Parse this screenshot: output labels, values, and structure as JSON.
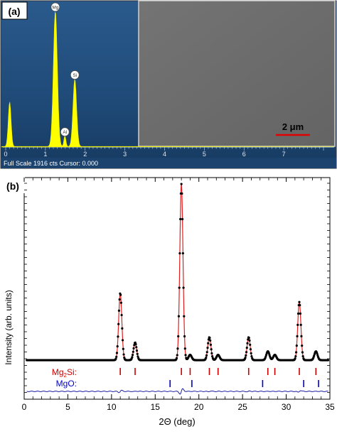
{
  "colors": {
    "eds_background": "#1e4a78",
    "eds_spectrum": "#ffff00",
    "sem_image": "#6e6e6e",
    "scale_bar": "#e00000",
    "fit_line": "#e02020",
    "observed_points": "#000000",
    "mg2si_ticks": "#cc0000",
    "mgo_ticks": "#0000cc",
    "difference_curve": "#1a1aa0"
  },
  "panel_a": {
    "label": "(a)",
    "status_text": "Full Scale 1916 cts Cursor: 0.000",
    "sem_scale_bar_label": "2 μm",
    "eds_peak_labels": [
      "Mg",
      "Si",
      "Al"
    ]
  },
  "panel_b": {
    "label": "(b)",
    "phase_labels": [
      "Mg2Si:",
      "MgO:"
    ]
  },
  "chart_data": [
    {
      "type": "area",
      "description_source": "EDS spectrum in panel (a)",
      "x_ticks": [
        0,
        1,
        2,
        3,
        4,
        5,
        6,
        7
      ],
      "xlim": [
        -0.1,
        8.4
      ],
      "peaks": [
        {
          "label": "",
          "x": 0.1,
          "height_fraction": 0.33
        },
        {
          "label": "Mg",
          "x": 1.25,
          "height_fraction": 1.0
        },
        {
          "label": "Al",
          "x": 1.49,
          "height_fraction": 0.08
        },
        {
          "label": "Si",
          "x": 1.74,
          "height_fraction": 0.5
        }
      ],
      "full_scale_counts": 1916
    },
    {
      "type": "scatter",
      "description_source": "XRD pattern with refinement in panel (b)",
      "xlabel": "2Θ (deg)",
      "ylabel": "Intensity (arb. units)",
      "xlim": [
        0,
        35
      ],
      "x_ticks": [
        0,
        5,
        10,
        15,
        20,
        25,
        30,
        35
      ],
      "baseline": 0.02,
      "peaks": [
        {
          "x": 11.0,
          "intensity": 0.38
        },
        {
          "x": 12.7,
          "intensity": 0.1
        },
        {
          "x": 18.0,
          "intensity": 1.0
        },
        {
          "x": 19.0,
          "intensity": 0.03
        },
        {
          "x": 21.2,
          "intensity": 0.13
        },
        {
          "x": 22.2,
          "intensity": 0.03
        },
        {
          "x": 25.7,
          "intensity": 0.13
        },
        {
          "x": 27.9,
          "intensity": 0.05
        },
        {
          "x": 28.7,
          "intensity": 0.03
        },
        {
          "x": 31.5,
          "intensity": 0.33
        },
        {
          "x": 33.4,
          "intensity": 0.05
        }
      ],
      "series": [
        {
          "name": "Mg2Si",
          "reflections": [
            11.0,
            12.7,
            18.0,
            19.0,
            21.2,
            22.2,
            25.7,
            27.9,
            28.7,
            31.5,
            33.4
          ]
        },
        {
          "name": "MgO",
          "reflections": [
            16.7,
            19.2,
            27.3,
            32.0,
            33.7
          ]
        }
      ]
    }
  ]
}
